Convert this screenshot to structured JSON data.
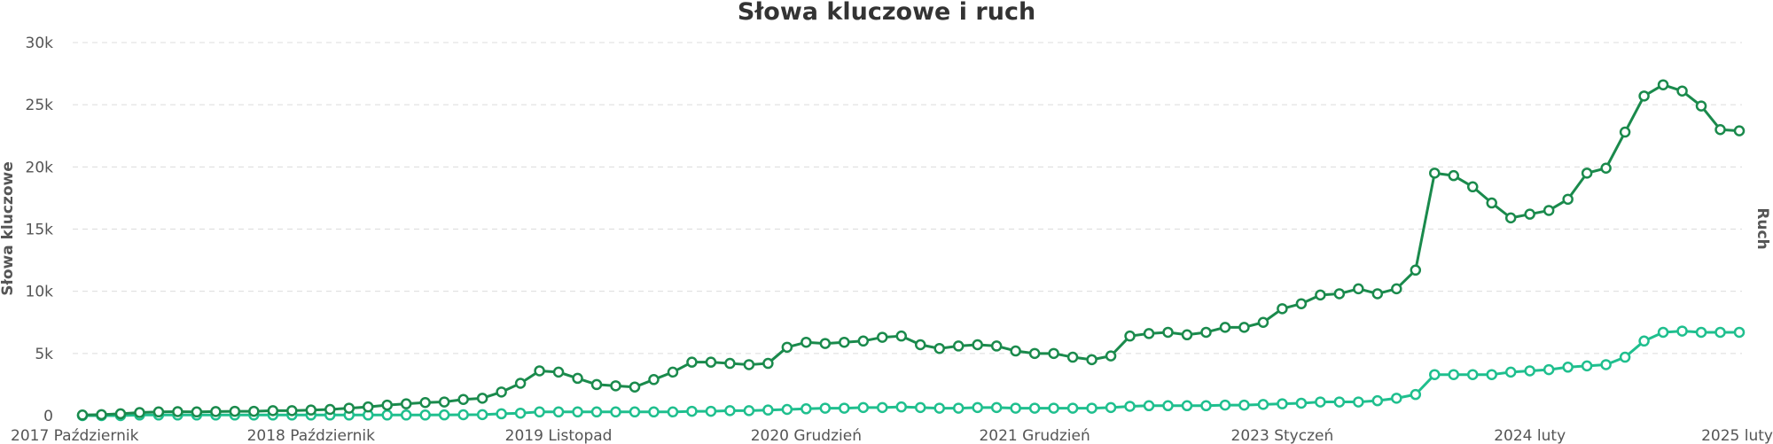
{
  "chart_data": {
    "type": "line",
    "title": "Słowa kluczowe i ruch",
    "ylabel": "Słowa kluczowe",
    "y2label": "Ruch",
    "ylim": [
      0,
      30000
    ],
    "yticks": [
      {
        "value": 0,
        "label": "0"
      },
      {
        "value": 5000,
        "label": "5k"
      },
      {
        "value": 10000,
        "label": "10k"
      },
      {
        "value": 15000,
        "label": "15k"
      },
      {
        "value": 20000,
        "label": "20k"
      },
      {
        "value": 25000,
        "label": "25k"
      },
      {
        "value": 30000,
        "label": "30k"
      }
    ],
    "xticks": [
      {
        "index": 0,
        "label": "2017 Październik"
      },
      {
        "index": 12,
        "label": "2018 Październik"
      },
      {
        "index": 25,
        "label": "2019 Listopad"
      },
      {
        "index": 38,
        "label": "2020 Grudzień"
      },
      {
        "index": 50,
        "label": "2021 Grudzień"
      },
      {
        "index": 63,
        "label": "2023 Styczeń"
      },
      {
        "index": 76,
        "label": "2024 luty"
      },
      {
        "index": 88,
        "label": "2025 luty"
      }
    ],
    "grid": true,
    "colors": {
      "keywords": "#1a8a4c",
      "traffic": "#1fbf8e"
    },
    "series": [
      {
        "values": [
          50,
          80,
          150,
          250,
          300,
          320,
          300,
          330,
          350,
          350,
          400,
          400,
          450,
          500,
          600,
          700,
          850,
          950,
          1050,
          1100,
          1300,
          1400,
          1900,
          2600,
          3600,
          3500,
          3000,
          2500,
          2400,
          2300,
          2900,
          3500,
          4300,
          4300,
          4200,
          4100,
          4200,
          5500,
          5900,
          5800,
          5900,
          6000,
          6300,
          6400,
          5700,
          5400,
          5600,
          5700,
          5600,
          5200,
          5000,
          5000,
          4700,
          4500,
          4800,
          6400,
          6600,
          6700,
          6500,
          6700,
          7100,
          7100,
          7500,
          8600,
          9000,
          9700,
          9800,
          10200,
          9800,
          10200,
          11700,
          19500,
          19300,
          18400,
          17100,
          15900,
          16200,
          16500,
          17400,
          19500,
          19900,
          22800,
          25700,
          26600,
          26100,
          24900,
          23000,
          22900
        ]
      },
      {
        "values": [
          0,
          0,
          0,
          50,
          50,
          50,
          50,
          50,
          50,
          50,
          50,
          50,
          50,
          50,
          50,
          50,
          50,
          50,
          50,
          60,
          70,
          80,
          150,
          200,
          300,
          300,
          300,
          300,
          300,
          300,
          300,
          300,
          350,
          350,
          400,
          400,
          450,
          500,
          550,
          600,
          600,
          650,
          650,
          700,
          650,
          600,
          600,
          650,
          650,
          600,
          600,
          600,
          600,
          600,
          650,
          750,
          800,
          800,
          800,
          800,
          850,
          850,
          900,
          950,
          1000,
          1100,
          1100,
          1100,
          1200,
          1400,
          1700,
          3300,
          3300,
          3300,
          3300,
          3500,
          3600,
          3700,
          3900,
          4000,
          4100,
          4700,
          6000,
          6700,
          6800,
          6700,
          6700,
          6700
        ]
      }
    ]
  }
}
